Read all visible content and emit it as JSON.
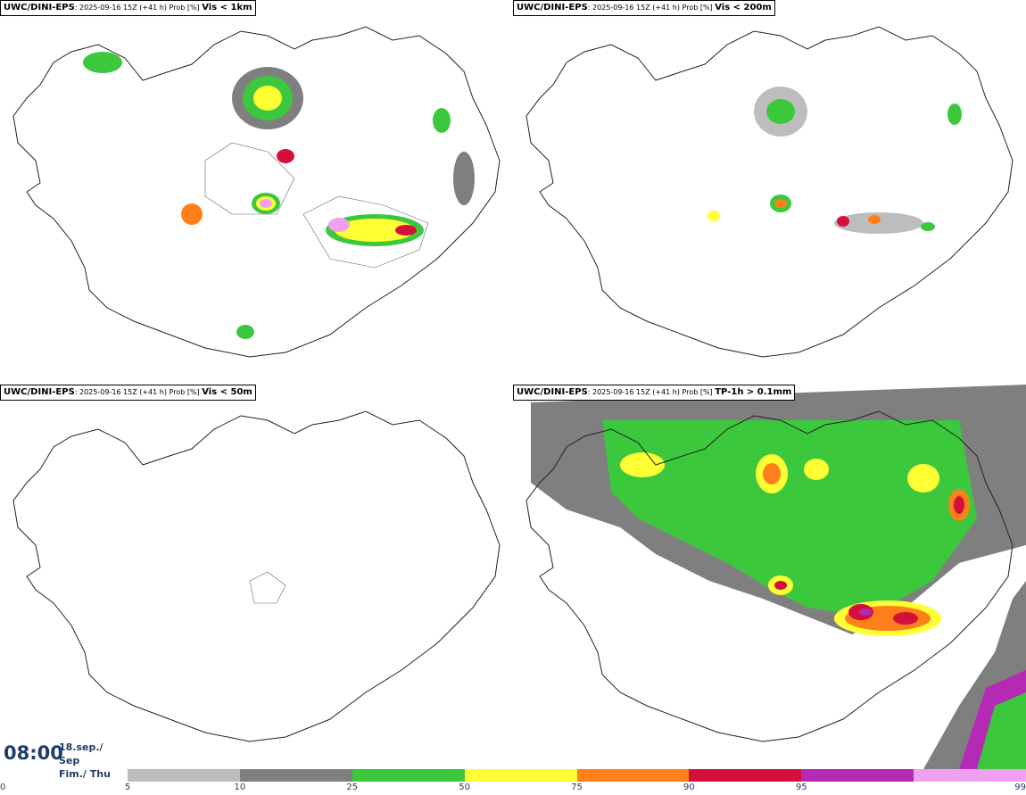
{
  "panels": [
    {
      "source": "UWC/DINI-EPS",
      "meta": ": 2025-09-16 15Z (+41 h) Prob [%] ",
      "variable": "Vis < 1km"
    },
    {
      "source": "UWC/DINI-EPS",
      "meta": ": 2025-09-16 15Z (+41 h) Prob [%] ",
      "variable": "Vis < 200m"
    },
    {
      "source": "UWC/DINI-EPS",
      "meta": ": 2025-09-16 15Z (+41 h) Prob [%] ",
      "variable": "Vis < 50m"
    },
    {
      "source": "UWC/DINI-EPS",
      "meta": ": 2025-09-16 15Z (+41 h) Prob [%] ",
      "variable": "TP-1h > 0.1mm"
    }
  ],
  "valid_time": {
    "time": "08:00",
    "date_line1": "18.sep./ Sep",
    "date_line2": "Fim./ Thu"
  },
  "legend": {
    "colors": [
      "#bdbdbd",
      "#7f7f7f",
      "#3cc83c",
      "#ffff33",
      "#ff7f1a",
      "#d40f3c",
      "#b42ab4",
      "#f0a0f0"
    ],
    "ticks": [
      "0",
      "5",
      "10",
      "25",
      "50",
      "75",
      "90",
      "95",
      "99"
    ]
  }
}
